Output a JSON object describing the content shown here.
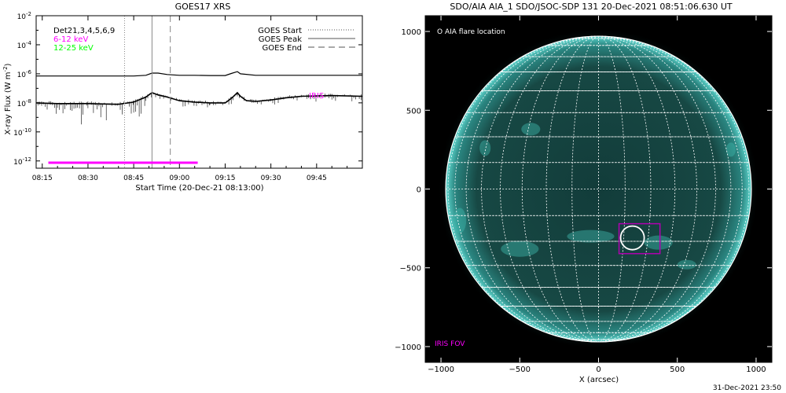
{
  "chart_data": [
    {
      "type": "line",
      "title": "GOES17 XRS",
      "xlabel": "Start Time (20-Dec-21 08:13:00)",
      "ylabel": "X-ray Flux (W m",
      "ylabel_sup": "-2",
      "ylabel_close": ")",
      "x_ticks": [
        "08:15",
        "08:30",
        "08:45",
        "09:00",
        "09:15",
        "09:30",
        "09:45"
      ],
      "x_tick_minutes": [
        15,
        30,
        45,
        60,
        75,
        90,
        105
      ],
      "x_range_minutes": [
        13,
        120
      ],
      "y_log": true,
      "y_ticks": [
        {
          "base": "10",
          "exp": "-2"
        },
        {
          "base": "10",
          "exp": "-4"
        },
        {
          "base": "10",
          "exp": "-6"
        },
        {
          "base": "10",
          "exp": "-8"
        },
        {
          "base": "10",
          "exp": "-10"
        },
        {
          "base": "10",
          "exp": "-12"
        }
      ],
      "y_tick_exponents": [
        -2,
        -4,
        -6,
        -8,
        -10,
        -12
      ],
      "y_range_exponent": [
        -12.5,
        -2
      ],
      "legend_top_left": [
        {
          "text": "Det21,3,4,5,6,9",
          "color": "#000000"
        },
        {
          "text": "6-12 keV",
          "color": "#ff00ff"
        },
        {
          "text": "12-25 keV",
          "color": "#00ff00"
        }
      ],
      "legend_top_right": [
        {
          "text": "GOES Start",
          "style": "dotted"
        },
        {
          "text": "GOES Peak",
          "style": "solid"
        },
        {
          "text": "GOES End",
          "style": "dashed"
        }
      ],
      "iris_label": "IRIS",
      "markers_minutes": {
        "start": 42,
        "peak": 51,
        "end": 57
      },
      "iris_bar_minutes": [
        17,
        66
      ],
      "series": [
        {
          "style": "solid",
          "x": [
            13,
            20,
            30,
            40,
            45,
            49,
            51,
            53,
            56,
            60,
            65,
            70,
            75,
            77,
            79,
            80,
            85,
            90,
            100,
            110,
            120
          ],
          "y_exp": [
            -6.15,
            -6.15,
            -6.15,
            -6.15,
            -6.15,
            -6.1,
            -5.95,
            -5.95,
            -6.05,
            -6.1,
            -6.1,
            -6.12,
            -6.12,
            -5.98,
            -5.85,
            -6.0,
            -6.1,
            -6.1,
            -6.1,
            -6.1,
            -6.1
          ]
        },
        {
          "style": "dotted",
          "x": [
            13,
            20,
            30,
            40,
            45,
            49,
            51,
            53,
            56,
            60,
            65,
            70,
            75,
            77,
            79,
            80,
            82,
            85,
            90,
            95,
            100,
            110,
            120
          ],
          "y_exp": [
            -8.0,
            -8.05,
            -8.05,
            -8.1,
            -7.95,
            -7.6,
            -7.3,
            -7.45,
            -7.6,
            -7.85,
            -7.95,
            -8.0,
            -8.0,
            -7.7,
            -7.3,
            -7.55,
            -7.85,
            -7.9,
            -7.8,
            -7.65,
            -7.55,
            -7.5,
            -7.55
          ]
        }
      ]
    },
    {
      "type": "scatter",
      "title": "SDO/AIA AIA_1 SDO/JSOC-SDP 131 20-Dec-2021 08:51:06.630 UT",
      "xlabel": "X (arcsec)",
      "x_ticks": [
        "−1000",
        "−500",
        "0",
        "500",
        "1000"
      ],
      "x_tick_values": [
        -1000,
        -500,
        0,
        500,
        1000
      ],
      "y_ticks": [
        "1000",
        "500",
        "0",
        "−500",
        "−1000"
      ],
      "y_tick_values": [
        1000,
        500,
        0,
        -500,
        -1000
      ],
      "xlim": [
        -1100,
        1100
      ],
      "ylim": [
        -1100,
        1100
      ],
      "solar_radius_arcsec": 970,
      "flare_location_label": "O AIA flare location",
      "flare_location": {
        "x": 215,
        "y": -310,
        "radius": 75
      },
      "iris_fov_label": "IRIS FOV",
      "iris_fov": {
        "x1": 130,
        "x2": 390,
        "y1": -410,
        "y2": -220
      },
      "colors": {
        "disk": "#2fa8a0",
        "grid": "#ffffff",
        "iris": "#b000b0"
      },
      "footer": "31-Dec-2021 23:50"
    }
  ]
}
